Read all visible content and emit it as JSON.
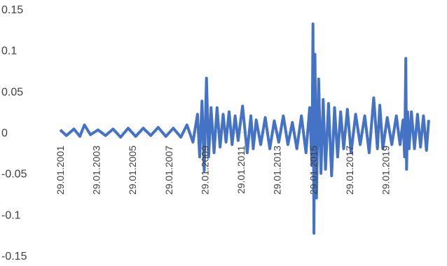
{
  "chart_data": {
    "type": "line",
    "title": "",
    "xlabel": "",
    "ylabel": "",
    "ylim": [
      -0.15,
      0.15
    ],
    "yticks": [
      0.15,
      0.1,
      0.05,
      0,
      -0.05,
      -0.1,
      -0.15
    ],
    "ytick_labels": [
      "0.15",
      "0.1",
      "0.05",
      "0",
      "-0.05",
      "-0.1",
      "-0.15"
    ],
    "xlim": [
      "2001-01-29",
      "2021-07-01"
    ],
    "xtick_labels": [
      "29.01.2001",
      "29.01.2003",
      "29.01.2005",
      "29.01.2007",
      "29.01.2009",
      "29.01.2011",
      "29.01.2013",
      "29.01.2015",
      "29.01.2017",
      "29.01.2019"
    ],
    "xtick_dates": [
      "2001-01-29",
      "2003-01-29",
      "2005-01-29",
      "2007-01-29",
      "2009-01-29",
      "2011-01-29",
      "2013-01-29",
      "2015-01-29",
      "2017-01-29",
      "2019-01-29"
    ],
    "grid": false,
    "legend": "none",
    "line_color": "#4472C4",
    "series": [
      {
        "x": [
          "2001-01-29",
          "2001-06-01",
          "2001-11-01",
          "2002-03-01",
          "2002-06-01",
          "2002-10-01",
          "2003-03-01",
          "2003-08-01",
          "2004-01-01",
          "2004-06-01",
          "2004-11-01",
          "2005-04-01",
          "2005-09-01",
          "2006-02-01",
          "2006-07-01",
          "2006-12-01",
          "2007-05-01",
          "2007-10-01",
          "2008-02-01",
          "2008-06-01",
          "2008-09-01",
          "2008-10-15",
          "2008-12-01",
          "2009-01-15",
          "2009-03-01",
          "2009-04-15",
          "2009-06-01",
          "2009-08-01",
          "2009-10-01",
          "2009-12-01",
          "2010-02-01",
          "2010-04-01",
          "2010-06-01",
          "2010-08-01",
          "2010-10-01",
          "2010-12-01",
          "2011-03-01",
          "2011-06-01",
          "2011-08-15",
          "2011-10-01",
          "2011-12-01",
          "2012-03-01",
          "2012-06-01",
          "2012-09-01",
          "2012-12-01",
          "2013-03-01",
          "2013-06-01",
          "2013-09-01",
          "2013-12-01",
          "2014-03-01",
          "2014-06-01",
          "2014-09-01",
          "2014-11-15",
          "2015-01-01",
          "2015-01-20",
          "2015-02-10",
          "2015-03-01",
          "2015-04-01",
          "2015-05-15",
          "2015-07-01",
          "2015-08-15",
          "2015-10-01",
          "2015-12-01",
          "2016-02-01",
          "2016-04-01",
          "2016-06-01",
          "2016-08-01",
          "2016-10-01",
          "2016-12-15",
          "2017-03-01",
          "2017-06-01",
          "2017-09-01",
          "2017-12-01",
          "2018-03-01",
          "2018-06-01",
          "2018-08-15",
          "2018-10-01",
          "2018-12-01",
          "2019-03-01",
          "2019-06-01",
          "2019-09-01",
          "2019-11-15",
          "2020-01-15",
          "2020-02-15",
          "2020-03-10",
          "2020-03-25",
          "2020-04-15",
          "2020-05-15",
          "2020-07-01",
          "2020-09-01",
          "2020-11-01",
          "2021-01-01",
          "2021-03-01",
          "2021-05-01",
          "2021-06-15"
        ],
        "values": [
          0.003,
          -0.004,
          0.004,
          -0.005,
          0.009,
          -0.003,
          0.003,
          -0.004,
          0.004,
          -0.006,
          0.005,
          -0.005,
          0.005,
          -0.004,
          0.006,
          -0.005,
          0.005,
          -0.006,
          0.009,
          -0.012,
          0.022,
          -0.03,
          0.038,
          -0.047,
          0.066,
          -0.03,
          0.03,
          -0.025,
          0.03,
          -0.018,
          0.022,
          -0.012,
          0.025,
          -0.015,
          0.02,
          -0.01,
          0.032,
          -0.025,
          0.02,
          -0.02,
          0.015,
          -0.015,
          0.018,
          -0.02,
          0.014,
          -0.012,
          0.02,
          -0.015,
          0.012,
          -0.02,
          0.02,
          -0.025,
          0.03,
          -0.04,
          0.132,
          -0.123,
          0.095,
          -0.08,
          0.065,
          -0.05,
          0.04,
          -0.045,
          0.035,
          -0.053,
          0.03,
          -0.03,
          0.025,
          -0.02,
          0.028,
          -0.025,
          0.022,
          -0.015,
          0.02,
          -0.025,
          0.042,
          -0.02,
          0.033,
          -0.02,
          0.018,
          -0.015,
          0.02,
          -0.015,
          0.015,
          -0.03,
          0.09,
          -0.045,
          0.025,
          -0.02,
          0.025,
          -0.02,
          0.022,
          -0.018,
          0.02,
          -0.022,
          0.015
        ]
      }
    ]
  }
}
